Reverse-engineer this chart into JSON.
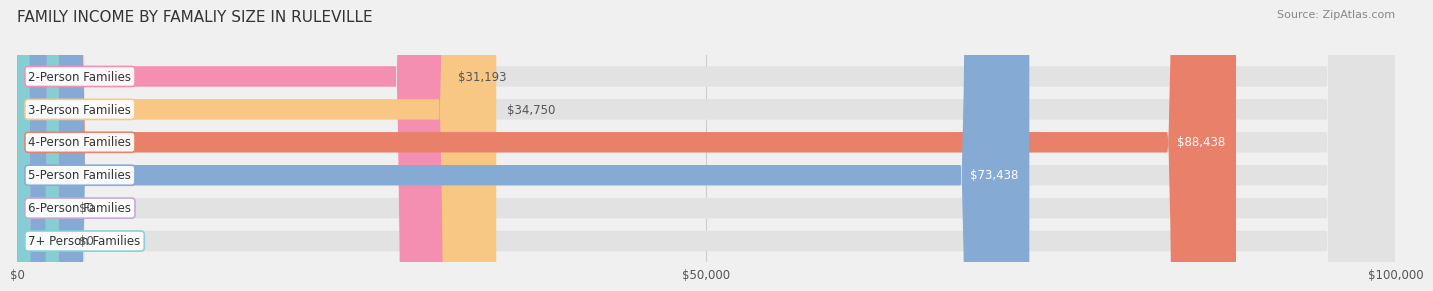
{
  "title": "FAMILY INCOME BY FAMALIY SIZE IN RULEVILLE",
  "source": "Source: ZipAtlas.com",
  "categories": [
    "2-Person Families",
    "3-Person Families",
    "4-Person Families",
    "5-Person Families",
    "6-Person Families",
    "7+ Person Families"
  ],
  "values": [
    31193,
    34750,
    88438,
    73438,
    0,
    0
  ],
  "bar_colors": [
    "#f48fb1",
    "#f9c784",
    "#e8806a",
    "#85aad4",
    "#c5a8d4",
    "#85cfd4"
  ],
  "value_labels": [
    "$31,193",
    "$34,750",
    "$88,438",
    "$73,438",
    "$0",
    "$0"
  ],
  "xlim": [
    0,
    100000
  ],
  "xticks": [
    0,
    50000,
    100000
  ],
  "xticklabels": [
    "$0",
    "$50,000",
    "$100,000"
  ],
  "background_color": "#f0f0f0",
  "bar_bg_color": "#e2e2e2",
  "title_fontsize": 11,
  "source_fontsize": 8,
  "label_fontsize": 8.5,
  "value_fontsize": 8.5
}
